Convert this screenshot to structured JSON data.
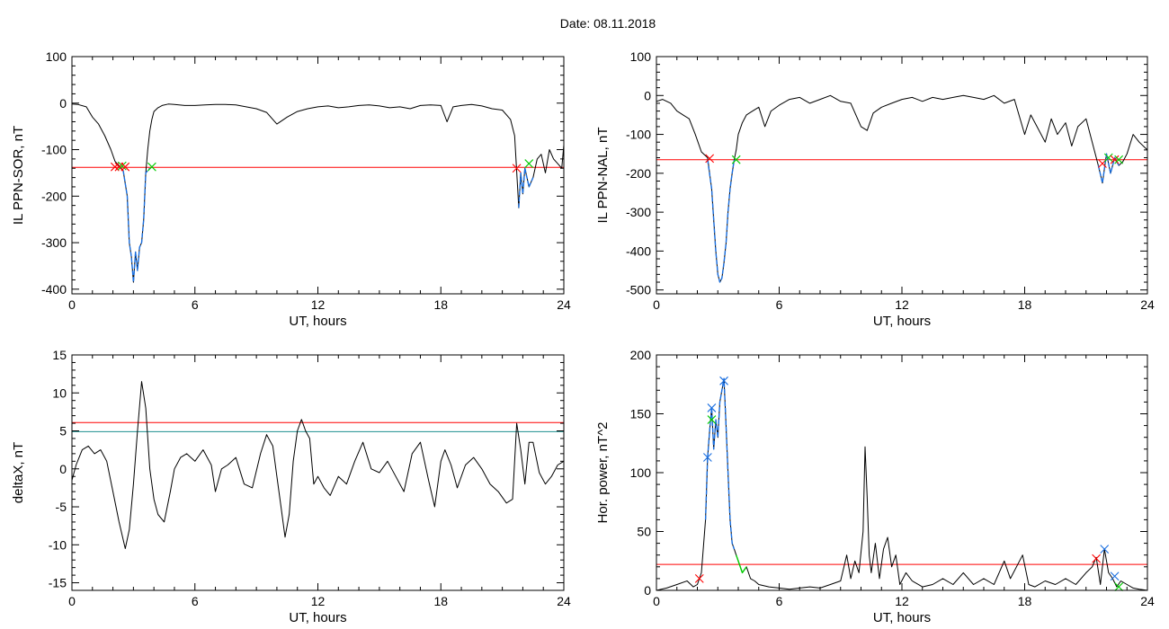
{
  "header": {
    "title": "Date:  08.11.2018"
  },
  "chart_data": [
    {
      "type": "line",
      "xlabel": "UT, hours",
      "ylabel": "IL PPN-SOR, nT",
      "xlim": [
        0,
        24
      ],
      "ylim": [
        -410,
        100
      ],
      "xticks": [
        0,
        6,
        12,
        18,
        24
      ],
      "yticks": [
        -400,
        -300,
        -200,
        -100,
        0,
        100
      ],
      "threshold": -138,
      "threshold_color": "#ff0000",
      "series": [
        {
          "color": "#000000",
          "x": [
            0,
            0.3,
            0.7,
            1.0,
            1.3,
            1.6,
            1.9,
            2.1,
            2.3,
            2.5,
            2.7,
            2.8,
            2.9,
            3.0,
            3.1,
            3.2,
            3.3,
            3.4,
            3.5,
            3.6,
            3.7,
            3.8,
            3.9,
            4.0,
            4.2,
            4.4,
            4.7,
            5.0,
            5.5,
            6.0,
            6.5,
            7.0,
            7.5,
            8.0,
            8.5,
            9.0,
            9.5,
            10.0,
            10.5,
            11.0,
            11.5,
            12.0,
            12.5,
            13.0,
            13.5,
            14.0,
            14.5,
            15.0,
            15.5,
            16.0,
            16.5,
            17.0,
            17.5,
            18.0,
            18.3,
            18.6,
            19.0,
            19.5,
            20.0,
            20.5,
            21.0,
            21.4,
            21.6,
            21.8,
            21.9,
            22.0,
            22.1,
            22.3,
            22.5,
            22.7,
            22.9,
            23.1,
            23.3,
            23.5,
            23.7,
            23.9,
            24.0
          ],
          "y": [
            -2,
            -3,
            -8,
            -30,
            -45,
            -70,
            -100,
            -125,
            -135,
            -145,
            -200,
            -300,
            -330,
            -385,
            -320,
            -360,
            -310,
            -300,
            -250,
            -150,
            -100,
            -60,
            -35,
            -18,
            -10,
            -5,
            -2,
            -3,
            -5,
            -5,
            -4,
            -3,
            -3,
            -4,
            -8,
            -12,
            -20,
            -45,
            -30,
            -18,
            -12,
            -8,
            -6,
            -10,
            -8,
            -5,
            -4,
            -6,
            -10,
            -8,
            -12,
            -5,
            -4,
            -5,
            -40,
            -8,
            -5,
            -3,
            -6,
            -12,
            -15,
            -35,
            -70,
            -225,
            -150,
            -195,
            -140,
            -180,
            -160,
            -120,
            -110,
            -150,
            -100,
            -120,
            -130,
            -140,
            -90
          ]
        },
        {
          "color": "#1a6fe0",
          "x": [
            2.5,
            2.7,
            2.8,
            2.9,
            3.0,
            3.1,
            3.2,
            3.3,
            3.4,
            3.5,
            3.6,
            3.7,
            3.8
          ],
          "y": [
            -145,
            -200,
            -300,
            -330,
            -385,
            -320,
            -360,
            -310,
            -300,
            -250,
            -150,
            -145,
            -140
          ]
        },
        {
          "color": "#1a6fe0",
          "x": [
            21.8,
            21.9,
            22.0,
            22.1,
            22.3,
            22.5
          ],
          "y": [
            -225,
            -150,
            -195,
            -140,
            -180,
            -160
          ]
        }
      ],
      "markers": [
        {
          "x": 2.1,
          "y": -137,
          "color": "#ff0000"
        },
        {
          "x": 2.3,
          "y": -137,
          "color": "#ff0000"
        },
        {
          "x": 2.45,
          "y": -135,
          "color": "#00cc00"
        },
        {
          "x": 2.6,
          "y": -137,
          "color": "#ff0000"
        },
        {
          "x": 3.9,
          "y": -137,
          "color": "#00cc00"
        },
        {
          "x": 21.7,
          "y": -140,
          "color": "#ff0000"
        },
        {
          "x": 22.3,
          "y": -130,
          "color": "#00cc00"
        }
      ]
    },
    {
      "type": "line",
      "xlabel": "UT, hours",
      "ylabel": "IL PPN-NAL, nT",
      "xlim": [
        0,
        24
      ],
      "ylim": [
        -510,
        100
      ],
      "xticks": [
        0,
        6,
        12,
        18,
        24
      ],
      "yticks": [
        -500,
        -400,
        -300,
        -200,
        -100,
        0,
        100
      ],
      "threshold": -165,
      "threshold_color": "#ff0000",
      "series": [
        {
          "color": "#000000",
          "x": [
            0,
            0.3,
            0.7,
            1.0,
            1.3,
            1.6,
            1.9,
            2.2,
            2.5,
            2.7,
            2.8,
            2.9,
            3.0,
            3.1,
            3.2,
            3.3,
            3.4,
            3.5,
            3.6,
            3.7,
            3.8,
            3.9,
            4.0,
            4.2,
            4.4,
            4.7,
            5.0,
            5.3,
            5.6,
            6.0,
            6.5,
            7.0,
            7.5,
            8.0,
            8.5,
            9.0,
            9.5,
            10.0,
            10.3,
            10.6,
            11.0,
            11.5,
            12.0,
            12.5,
            13.0,
            13.5,
            14.0,
            14.5,
            15.0,
            15.5,
            16.0,
            16.5,
            17.0,
            17.5,
            18.0,
            18.3,
            18.6,
            19.0,
            19.3,
            19.6,
            20.0,
            20.3,
            20.6,
            21.0,
            21.3,
            21.6,
            21.8,
            22.0,
            22.2,
            22.4,
            22.6,
            22.8,
            23.0,
            23.3,
            23.6,
            24.0
          ],
          "y": [
            -15,
            -10,
            -20,
            -40,
            -50,
            -60,
            -100,
            -145,
            -160,
            -240,
            -320,
            -400,
            -460,
            -480,
            -470,
            -430,
            -380,
            -300,
            -240,
            -200,
            -165,
            -140,
            -100,
            -70,
            -50,
            -40,
            -30,
            -80,
            -40,
            -25,
            -10,
            -5,
            -20,
            -10,
            0,
            -15,
            -20,
            -80,
            -90,
            -45,
            -30,
            -20,
            -10,
            -5,
            -15,
            -5,
            -10,
            -5,
            0,
            -5,
            -10,
            0,
            -20,
            -10,
            -100,
            -50,
            -80,
            -120,
            -60,
            -100,
            -70,
            -130,
            -80,
            -60,
            -120,
            -180,
            -225,
            -150,
            -200,
            -160,
            -180,
            -170,
            -150,
            -100,
            -120,
            -140
          ]
        },
        {
          "color": "#1a6fe0",
          "x": [
            2.5,
            2.7,
            2.8,
            2.9,
            3.0,
            3.1,
            3.2,
            3.3,
            3.4,
            3.5,
            3.6,
            3.7,
            3.8
          ],
          "y": [
            -165,
            -240,
            -320,
            -400,
            -460,
            -480,
            -470,
            -430,
            -380,
            -300,
            -240,
            -200,
            -165
          ]
        },
        {
          "color": "#1a6fe0",
          "x": [
            21.6,
            21.8,
            22.0,
            22.2,
            22.4,
            22.6
          ],
          "y": [
            -180,
            -225,
            -150,
            -200,
            -160,
            -180
          ]
        }
      ],
      "markers": [
        {
          "x": 2.6,
          "y": -162,
          "color": "#ff0000"
        },
        {
          "x": 3.9,
          "y": -165,
          "color": "#00cc00"
        },
        {
          "x": 21.8,
          "y": -175,
          "color": "#ff0000"
        },
        {
          "x": 22.1,
          "y": -160,
          "color": "#00cc00"
        },
        {
          "x": 22.4,
          "y": -165,
          "color": "#ff0000"
        },
        {
          "x": 22.6,
          "y": -165,
          "color": "#00cc00"
        }
      ]
    },
    {
      "type": "line",
      "xlabel": "UT, hours",
      "ylabel": "deltaX, nT",
      "xlim": [
        0,
        24
      ],
      "ylim": [
        -16,
        15
      ],
      "xticks": [
        0,
        6,
        12,
        18,
        24
      ],
      "yticks": [
        -15,
        -10,
        -5,
        0,
        5,
        10,
        15
      ],
      "thresholds": [
        {
          "value": 6.1,
          "color": "#ff0000"
        },
        {
          "value": 4.9,
          "color": "#1f8f8f"
        }
      ],
      "series": [
        {
          "color": "#000000",
          "x": [
            0,
            0.2,
            0.5,
            0.8,
            1.1,
            1.4,
            1.7,
            2.0,
            2.3,
            2.6,
            2.8,
            3.0,
            3.2,
            3.4,
            3.6,
            3.8,
            4.0,
            4.2,
            4.5,
            4.8,
            5.0,
            5.3,
            5.6,
            6.0,
            6.4,
            6.8,
            7.0,
            7.3,
            7.6,
            8.0,
            8.4,
            8.8,
            9.2,
            9.5,
            9.8,
            10.0,
            10.2,
            10.4,
            10.6,
            10.8,
            11.0,
            11.2,
            11.4,
            11.6,
            11.8,
            12.0,
            12.3,
            12.6,
            13.0,
            13.4,
            13.8,
            14.2,
            14.6,
            15.0,
            15.4,
            15.8,
            16.2,
            16.6,
            17.0,
            17.4,
            17.7,
            18.0,
            18.2,
            18.5,
            18.8,
            19.2,
            19.6,
            20.0,
            20.4,
            20.8,
            21.2,
            21.5,
            21.7,
            21.9,
            22.1,
            22.3,
            22.5,
            22.8,
            23.1,
            23.4,
            23.7,
            24.0
          ],
          "y": [
            -1.5,
            0.5,
            2.5,
            3.0,
            2.0,
            2.5,
            1.0,
            -3.0,
            -7.0,
            -10.5,
            -8.0,
            -2.0,
            5.0,
            11.5,
            8.0,
            0.0,
            -4.0,
            -6.0,
            -7.0,
            -3.0,
            0.0,
            1.5,
            2.0,
            1.0,
            2.5,
            0.5,
            -3.0,
            0.0,
            0.5,
            1.5,
            -2.0,
            -2.5,
            2.0,
            4.5,
            3.0,
            -1.0,
            -5.0,
            -9.0,
            -6.0,
            1.0,
            5.0,
            6.5,
            5.0,
            4.0,
            -2.0,
            -1.0,
            -2.5,
            -3.5,
            -1.0,
            -2.0,
            1.0,
            3.5,
            0.0,
            -0.5,
            1.0,
            -1.0,
            -3.0,
            2.0,
            3.5,
            -1.5,
            -5.0,
            1.0,
            2.5,
            0.5,
            -2.5,
            0.5,
            1.5,
            0.0,
            -2.0,
            -3.0,
            -4.5,
            -4.0,
            6.0,
            2.5,
            -2.0,
            3.5,
            3.5,
            -0.5,
            -2.0,
            -1.0,
            0.5,
            1.0
          ]
        }
      ],
      "markers": []
    },
    {
      "type": "line",
      "xlabel": "UT, hours",
      "ylabel": "Hor. power, nT^2",
      "xlim": [
        0,
        24
      ],
      "ylim": [
        0,
        200
      ],
      "xticks": [
        0,
        6,
        12,
        18,
        24
      ],
      "yticks": [
        0,
        50,
        100,
        150,
        200
      ],
      "threshold": 22,
      "threshold_color": "#ff0000",
      "series": [
        {
          "color": "#000000",
          "x": [
            0,
            0.5,
            1.0,
            1.5,
            1.8,
            2.0,
            2.2,
            2.4,
            2.5,
            2.6,
            2.7,
            2.8,
            2.9,
            3.0,
            3.1,
            3.2,
            3.3,
            3.4,
            3.5,
            3.6,
            3.7,
            3.8,
            3.9,
            4.0,
            4.2,
            4.4,
            4.6,
            4.8,
            5.0,
            5.5,
            6.0,
            6.5,
            7.0,
            7.5,
            8.0,
            8.5,
            9.0,
            9.3,
            9.5,
            9.7,
            9.9,
            10.1,
            10.2,
            10.3,
            10.4,
            10.5,
            10.7,
            10.9,
            11.1,
            11.3,
            11.5,
            11.7,
            11.9,
            12.2,
            12.5,
            13.0,
            13.5,
            14.0,
            14.5,
            15.0,
            15.5,
            16.0,
            16.5,
            17.0,
            17.3,
            17.6,
            17.9,
            18.2,
            18.5,
            19.0,
            19.5,
            20.0,
            20.5,
            21.0,
            21.3,
            21.5,
            21.7,
            21.9,
            22.1,
            22.3,
            22.5,
            22.7,
            23.0,
            23.3,
            23.6,
            24.0
          ],
          "y": [
            0,
            2,
            5,
            8,
            3,
            5,
            15,
            60,
            113,
            135,
            155,
            120,
            145,
            130,
            160,
            170,
            180,
            140,
            100,
            60,
            40,
            35,
            30,
            25,
            15,
            20,
            10,
            8,
            5,
            3,
            2,
            1,
            2,
            3,
            2,
            5,
            8,
            30,
            10,
            25,
            15,
            50,
            122,
            80,
            30,
            15,
            40,
            10,
            35,
            45,
            20,
            30,
            5,
            15,
            8,
            3,
            5,
            10,
            5,
            15,
            5,
            10,
            5,
            25,
            10,
            20,
            30,
            5,
            3,
            8,
            5,
            10,
            5,
            15,
            20,
            28,
            5,
            35,
            15,
            10,
            3,
            8,
            5,
            2,
            1,
            0
          ]
        },
        {
          "color": "#1a6fe0",
          "x": [
            2.4,
            2.5,
            2.6,
            2.7,
            2.8,
            2.9,
            3.0,
            3.1,
            3.2,
            3.3,
            3.4,
            3.5,
            3.6,
            3.7,
            3.8
          ],
          "y": [
            60,
            113,
            135,
            155,
            120,
            145,
            130,
            160,
            170,
            180,
            140,
            100,
            60,
            40,
            35
          ]
        },
        {
          "color": "#00cc00",
          "x": [
            3.9,
            4.0,
            4.2,
            4.4
          ],
          "y": [
            30,
            25,
            15,
            20
          ]
        }
      ],
      "markers": [
        {
          "x": 2.1,
          "y": 10,
          "color": "#ff0000"
        },
        {
          "x": 2.5,
          "y": 113,
          "color": "#1a6fe0"
        },
        {
          "x": 2.7,
          "y": 155,
          "color": "#1a6fe0"
        },
        {
          "x": 2.7,
          "y": 145,
          "color": "#00cc00"
        },
        {
          "x": 3.3,
          "y": 178,
          "color": "#1a6fe0"
        },
        {
          "x": 21.5,
          "y": 27,
          "color": "#ff0000"
        },
        {
          "x": 21.9,
          "y": 35,
          "color": "#1a6fe0"
        },
        {
          "x": 22.4,
          "y": 12,
          "color": "#1a6fe0"
        },
        {
          "x": 22.6,
          "y": 3,
          "color": "#00cc00"
        }
      ]
    }
  ]
}
